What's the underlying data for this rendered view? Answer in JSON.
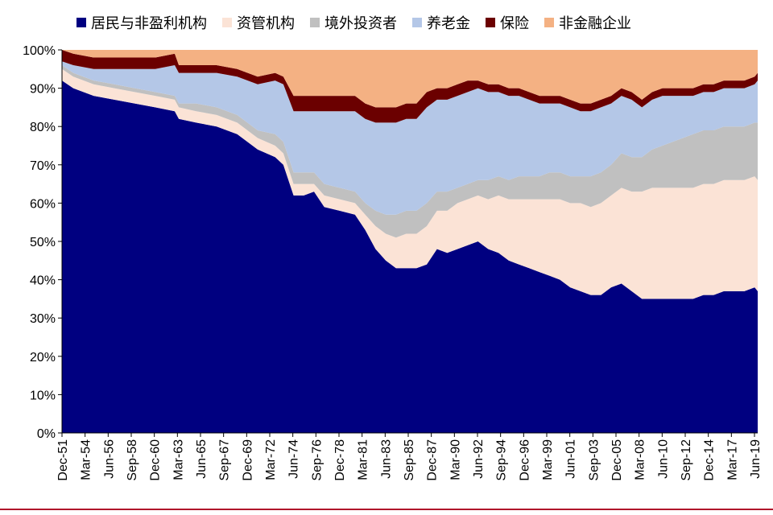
{
  "chart_data": {
    "type": "area",
    "stacked": true,
    "ylim": [
      0,
      100
    ],
    "y_ticks": [
      "0%",
      "10%",
      "20%",
      "30%",
      "40%",
      "50%",
      "60%",
      "70%",
      "80%",
      "90%",
      "100%"
    ],
    "x_tick_labels": [
      "Dec-51",
      "Mar-54",
      "Jun-56",
      "Sep-58",
      "Dec-60",
      "Mar-63",
      "Jun-65",
      "Sep-67",
      "Dec-69",
      "Mar-72",
      "Jun-74",
      "Sep-76",
      "Dec-78",
      "Mar-81",
      "Jun-83",
      "Sep-85",
      "Dec-87",
      "Mar-90",
      "Jun-92",
      "Sep-94",
      "Dec-96",
      "Mar-99",
      "Jun-01",
      "Sep-03",
      "Dec-05",
      "Mar-08",
      "Jun-10",
      "Sep-12",
      "Dec-14",
      "Mar-17",
      "Jun-19"
    ],
    "x": [
      1951.9,
      1953,
      1955,
      1957,
      1959,
      1961,
      1962.9,
      1963.3,
      1965,
      1967,
      1969,
      1971,
      1972.7,
      1973.5,
      1974.5,
      1975.5,
      1976.5,
      1977.5,
      1979,
      1980.5,
      1981.5,
      1982.5,
      1983.5,
      1984.5,
      1985.5,
      1986.5,
      1987.5,
      1988.5,
      1989.5,
      1990.5,
      1991.5,
      1992.5,
      1993.5,
      1994.5,
      1995.5,
      1996.5,
      1997.5,
      1998.5,
      1999.5,
      2000.5,
      2001.5,
      2002.5,
      2003.5,
      2004.5,
      2005.5,
      2006.5,
      2007.5,
      2008.5,
      2009.5,
      2010.5,
      2011.5,
      2012.5,
      2013.5,
      2014.5,
      2015.5,
      2016.5,
      2017.5,
      2018.5,
      2019.5,
      2019.8
    ],
    "legend_position": "top",
    "series": [
      {
        "name": "居民与非盈利机构",
        "color": "#000080",
        "values": [
          92,
          90,
          88,
          87,
          86,
          85,
          84,
          82,
          81,
          80,
          78,
          74,
          72,
          70,
          62,
          62,
          63,
          59,
          58,
          57,
          53,
          48,
          45,
          43,
          43,
          43,
          44,
          48,
          47,
          48,
          49,
          50,
          48,
          47,
          45,
          44,
          43,
          42,
          41,
          40,
          38,
          37,
          36,
          36,
          38,
          39,
          37,
          35,
          35,
          35,
          35,
          35,
          35,
          36,
          36,
          37,
          37,
          37,
          38,
          37
        ]
      },
      {
        "name": "资管机构",
        "color": "#fbe3d6",
        "values": [
          3,
          3,
          3,
          3,
          3,
          3,
          3,
          3,
          3,
          3,
          3,
          3,
          3,
          3,
          3,
          3,
          2,
          3,
          3,
          3,
          4,
          6,
          7,
          8,
          9,
          9,
          10,
          10,
          11,
          12,
          12,
          12,
          13,
          15,
          16,
          17,
          18,
          19,
          20,
          21,
          22,
          23,
          23,
          24,
          24,
          25,
          26,
          28,
          29,
          29,
          29,
          29,
          29,
          29,
          29,
          29,
          29,
          29,
          29,
          29
        ]
      },
      {
        "name": "境外投资者",
        "color": "#c0c0c0",
        "values": [
          1,
          1,
          1,
          1,
          1,
          1,
          1,
          1,
          2,
          2,
          2,
          2,
          3,
          3,
          3,
          3,
          3,
          3,
          3,
          3,
          3,
          4,
          5,
          6,
          6,
          6,
          6,
          5,
          5,
          4,
          4,
          4,
          5,
          5,
          5,
          6,
          6,
          6,
          7,
          7,
          7,
          7,
          8,
          8,
          8,
          9,
          9,
          9,
          10,
          11,
          12,
          13,
          14,
          14,
          14,
          14,
          14,
          14,
          14,
          15
        ]
      },
      {
        "name": "养老金",
        "color": "#b4c7e7",
        "values": [
          1,
          2,
          3,
          4,
          5,
          6,
          8,
          8,
          8,
          9,
          10,
          12,
          14,
          15,
          16,
          16,
          16,
          19,
          20,
          21,
          22,
          23,
          24,
          24,
          24,
          24,
          25,
          24,
          24,
          24,
          24,
          24,
          23,
          22,
          22,
          21,
          20,
          19,
          18,
          18,
          18,
          17,
          17,
          17,
          16,
          15,
          15,
          13,
          13,
          13,
          12,
          11,
          10,
          10,
          10,
          10,
          10,
          10,
          10,
          11
        ]
      },
      {
        "name": "保险",
        "color": "#6b0000",
        "values": [
          3,
          3,
          3,
          3,
          3,
          3,
          3,
          2,
          2,
          2,
          2,
          2,
          2,
          2,
          4,
          4,
          4,
          4,
          4,
          4,
          4,
          4,
          4,
          4,
          4,
          4,
          4,
          3,
          3,
          3,
          3,
          2,
          2,
          2,
          2,
          2,
          2,
          2,
          2,
          2,
          2,
          2,
          2,
          2,
          2,
          2,
          2,
          2,
          2,
          2,
          2,
          2,
          2,
          2,
          2,
          2,
          2,
          2,
          2,
          2
        ]
      },
      {
        "name": "非金融企业",
        "color": "#f4b183",
        "values": [
          0,
          1,
          2,
          2,
          2,
          2,
          1,
          4,
          4,
          4,
          5,
          7,
          6,
          7,
          12,
          12,
          12,
          12,
          12,
          12,
          14,
          15,
          15,
          15,
          14,
          14,
          11,
          10,
          10,
          9,
          8,
          8,
          9,
          9,
          10,
          10,
          11,
          12,
          12,
          12,
          13,
          14,
          14,
          13,
          12,
          10,
          11,
          13,
          11,
          10,
          10,
          10,
          10,
          9,
          9,
          8,
          8,
          8,
          7,
          6
        ]
      }
    ]
  }
}
